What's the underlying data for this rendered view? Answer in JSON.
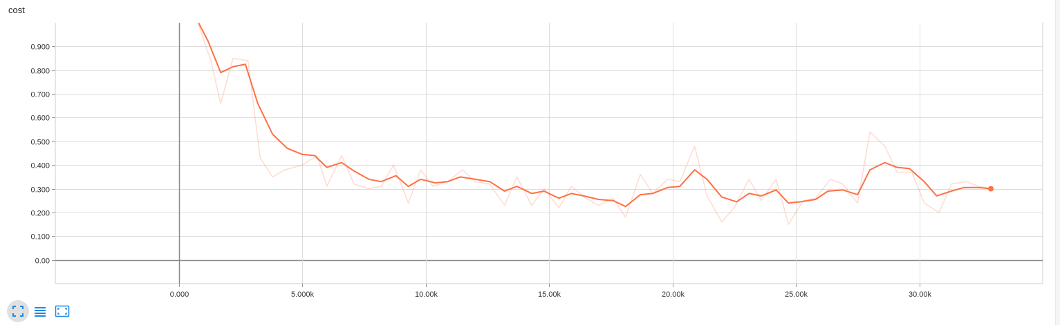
{
  "chart_title": "cost",
  "toolbar": {
    "buttons": [
      {
        "icon": "fullscreen-icon",
        "active": true
      },
      {
        "icon": "list-icon",
        "active": false
      },
      {
        "icon": "fit-domain-icon",
        "active": false
      }
    ],
    "icon_color": "#1e88e5"
  },
  "chart_data": {
    "type": "line",
    "title": "cost",
    "xlabel": "",
    "ylabel": "",
    "xlim": [
      -5000,
      35000
    ],
    "ylim": [
      -0.1,
      1.0
    ],
    "x_ticks": [
      {
        "value": 0,
        "label": "0.000"
      },
      {
        "value": 5000,
        "label": "5.000k"
      },
      {
        "value": 10000,
        "label": "10.00k"
      },
      {
        "value": 15000,
        "label": "15.00k"
      },
      {
        "value": 20000,
        "label": "20.00k"
      },
      {
        "value": 25000,
        "label": "25.00k"
      },
      {
        "value": 30000,
        "label": "30.00k"
      }
    ],
    "y_ticks": [
      {
        "value": 0.0,
        "label": "0.00"
      },
      {
        "value": 0.1,
        "label": "0.100"
      },
      {
        "value": 0.2,
        "label": "0.200"
      },
      {
        "value": 0.3,
        "label": "0.300"
      },
      {
        "value": 0.4,
        "label": "0.400"
      },
      {
        "value": 0.5,
        "label": "0.500"
      },
      {
        "value": 0.6,
        "label": "0.600"
      },
      {
        "value": 0.7,
        "label": "0.700"
      },
      {
        "value": 0.8,
        "label": "0.800"
      },
      {
        "value": 0.9,
        "label": "0.900"
      }
    ],
    "grid": true,
    "legend": "none",
    "series": [
      {
        "role": "raw",
        "color": "#ff7043",
        "opacity": 0.25,
        "x": [
          800,
          1300,
          1700,
          2200,
          2800,
          3300,
          3800,
          4300,
          5000,
          5600,
          6000,
          6600,
          7100,
          7700,
          8200,
          8700,
          9300,
          9800,
          10300,
          10900,
          11500,
          12000,
          12600,
          13200,
          13700,
          14300,
          14800,
          15400,
          15900,
          16500,
          17000,
          17600,
          18100,
          18700,
          19200,
          19800,
          20300,
          20900,
          21400,
          22000,
          22500,
          23100,
          23600,
          24200,
          24700,
          25300,
          25800,
          26400,
          26900,
          27500,
          28000,
          28600,
          29100,
          29700,
          30200,
          30800,
          31300,
          31900,
          32400,
          33000
        ],
        "y": [
          0.99,
          0.84,
          0.66,
          0.85,
          0.84,
          0.43,
          0.35,
          0.38,
          0.4,
          0.44,
          0.31,
          0.44,
          0.32,
          0.3,
          0.31,
          0.4,
          0.24,
          0.38,
          0.31,
          0.33,
          0.38,
          0.33,
          0.32,
          0.23,
          0.35,
          0.23,
          0.3,
          0.22,
          0.31,
          0.26,
          0.23,
          0.26,
          0.18,
          0.36,
          0.28,
          0.34,
          0.33,
          0.48,
          0.27,
          0.16,
          0.22,
          0.34,
          0.25,
          0.34,
          0.15,
          0.25,
          0.26,
          0.34,
          0.32,
          0.24,
          0.54,
          0.48,
          0.37,
          0.37,
          0.24,
          0.2,
          0.32,
          0.33,
          0.31,
          0.3
        ]
      },
      {
        "role": "smoothed",
        "color": "#ff7043",
        "opacity": 1,
        "x": [
          800,
          1200,
          1700,
          2200,
          2700,
          3200,
          3800,
          4400,
          5000,
          5500,
          6000,
          6600,
          7100,
          7700,
          8200,
          8800,
          9300,
          9800,
          10400,
          10900,
          11400,
          12000,
          12600,
          13200,
          13700,
          14300,
          14800,
          15400,
          15900,
          16400,
          17000,
          17600,
          18100,
          18700,
          19200,
          19800,
          20300,
          20900,
          21400,
          22000,
          22600,
          23100,
          23600,
          24200,
          24700,
          25200,
          25800,
          26300,
          26900,
          27500,
          28000,
          28600,
          29100,
          29600,
          30200,
          30700,
          31300,
          31800,
          32400,
          32900
        ],
        "y": [
          1.0,
          0.92,
          0.79,
          0.815,
          0.825,
          0.66,
          0.53,
          0.47,
          0.445,
          0.44,
          0.39,
          0.41,
          0.375,
          0.34,
          0.33,
          0.355,
          0.31,
          0.34,
          0.325,
          0.33,
          0.35,
          0.34,
          0.33,
          0.29,
          0.31,
          0.28,
          0.29,
          0.26,
          0.28,
          0.27,
          0.255,
          0.25,
          0.225,
          0.275,
          0.28,
          0.305,
          0.31,
          0.38,
          0.34,
          0.265,
          0.245,
          0.28,
          0.27,
          0.295,
          0.24,
          0.245,
          0.255,
          0.29,
          0.295,
          0.275,
          0.38,
          0.41,
          0.39,
          0.385,
          0.33,
          0.27,
          0.29,
          0.305,
          0.305,
          0.3
        ]
      }
    ]
  }
}
